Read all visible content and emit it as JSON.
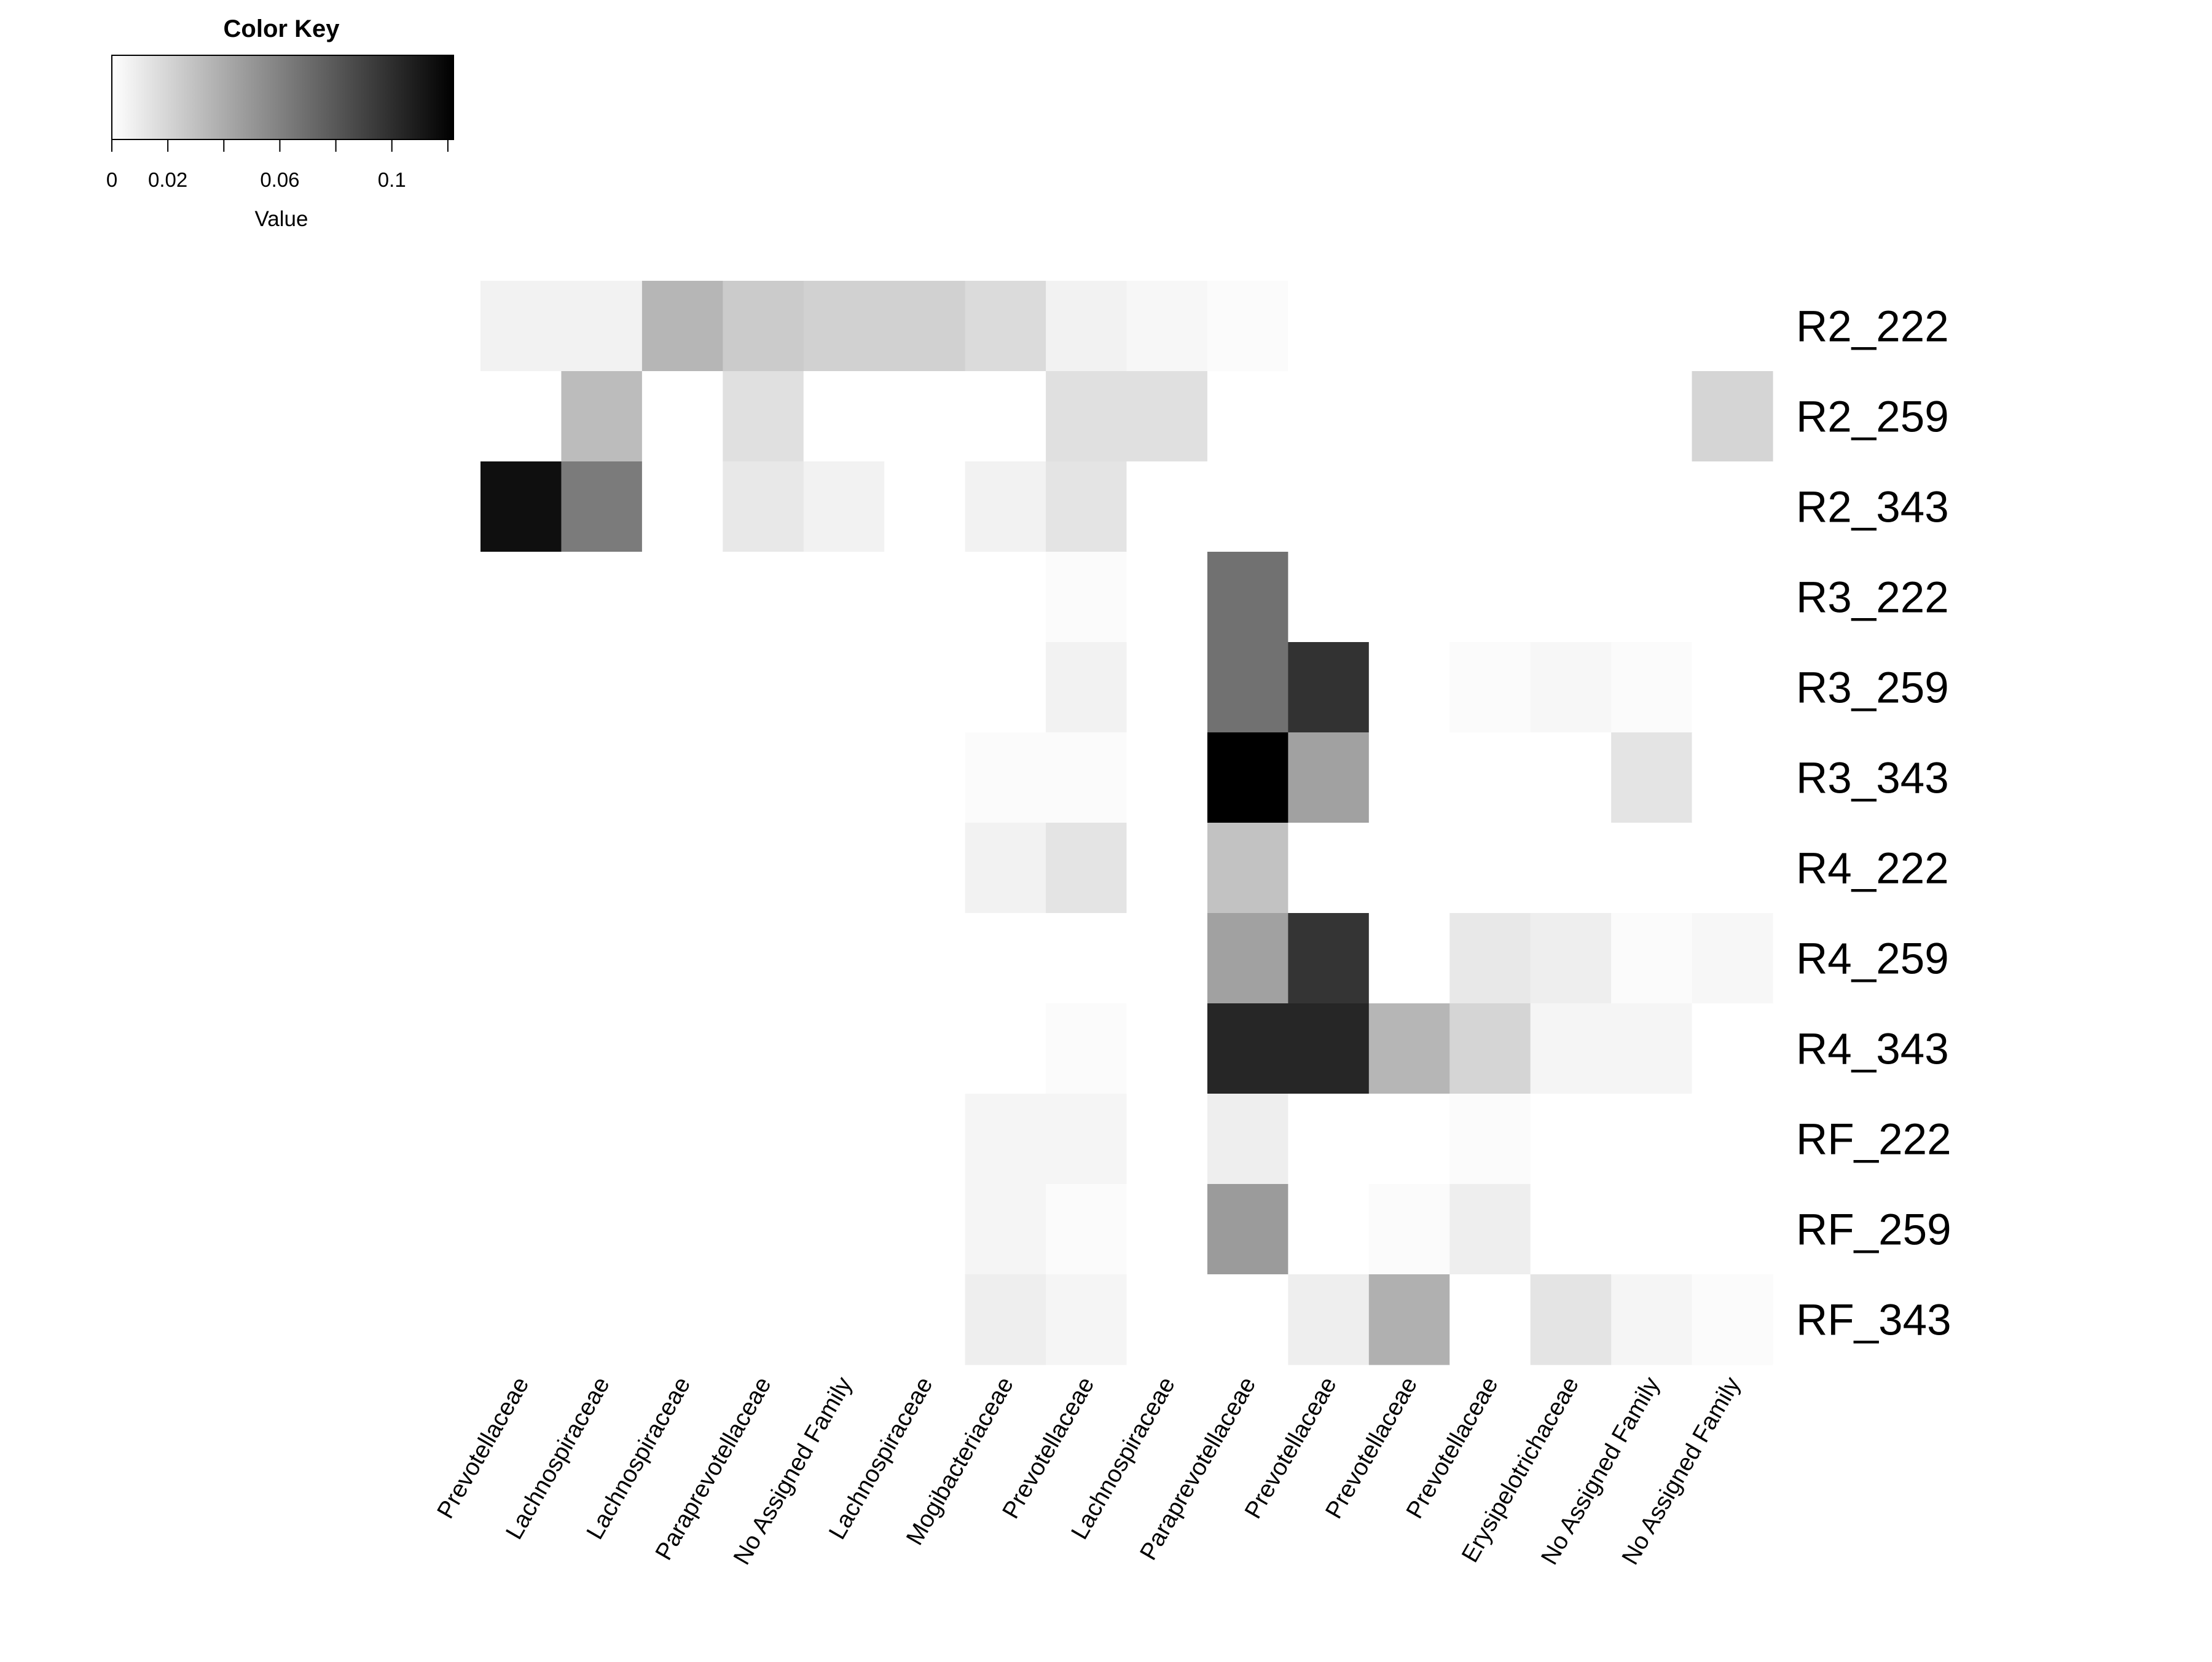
{
  "chart_data": {
    "type": "heatmap",
    "color_key": {
      "title": "Color Key",
      "xlabel": "Value",
      "tick_labels": [
        "0",
        "0.02",
        "0.06",
        "0.1"
      ],
      "tick_values": [
        0,
        0.02,
        0.06,
        0.1
      ],
      "range": [
        0,
        0.122
      ],
      "low_color": "#ffffff",
      "high_color": "#000000"
    },
    "rows": [
      "R2_222",
      "R2_259",
      "R2_343",
      "R3_222",
      "R3_259",
      "R3_343",
      "R4_222",
      "R4_259",
      "R4_343",
      "RF_222",
      "RF_259",
      "RF_343"
    ],
    "columns": [
      "Prevotellaceae",
      "Lachnospiraceae",
      "Lachnospiraceae",
      "Paraprevotellaceae",
      "No Assigned Family",
      "Lachnospiraceae",
      "Mogibacteriaceae",
      "Prevotellaceae",
      "Lachnospiraceae",
      "Paraprevotellaceae",
      "Prevotellaceae",
      "Prevotellaceae",
      "Prevotellaceae",
      "Erysipelotrichaceae",
      "No Assigned Family",
      "No Assigned Family"
    ],
    "values": [
      [
        0.006,
        0.006,
        0.035,
        0.025,
        0.022,
        0.022,
        0.017,
        0.006,
        0.004,
        0.002,
        0,
        0,
        0,
        0,
        0,
        0
      ],
      [
        0,
        0.032,
        0,
        0.015,
        0,
        0,
        0,
        0.015,
        0.015,
        0,
        0,
        0,
        0,
        0,
        0,
        0.02
      ],
      [
        0.115,
        0.063,
        0,
        0.011,
        0.006,
        0,
        0.006,
        0.013,
        0,
        0,
        0,
        0,
        0,
        0,
        0,
        0
      ],
      [
        0,
        0,
        0,
        0,
        0,
        0,
        0,
        0.002,
        0,
        0.068,
        0,
        0,
        0,
        0,
        0,
        0
      ],
      [
        0,
        0,
        0,
        0,
        0,
        0,
        0,
        0.006,
        0,
        0.068,
        0.098,
        0,
        0.002,
        0.004,
        0.002,
        0
      ],
      [
        0,
        0,
        0,
        0,
        0,
        0,
        0.002,
        0.002,
        0,
        0.122,
        0.045,
        0,
        0,
        0,
        0.013,
        0
      ],
      [
        0,
        0,
        0,
        0,
        0,
        0,
        0.006,
        0.013,
        0,
        0.029,
        0,
        0,
        0,
        0,
        0,
        0
      ],
      [
        0,
        0,
        0,
        0,
        0,
        0,
        0,
        0,
        0,
        0.045,
        0.097,
        0,
        0.011,
        0.008,
        0.002,
        0.004
      ],
      [
        0,
        0,
        0,
        0,
        0,
        0,
        0,
        0.002,
        0,
        0.104,
        0.104,
        0.035,
        0.02,
        0.005,
        0.005,
        0
      ],
      [
        0,
        0,
        0,
        0,
        0,
        0,
        0.005,
        0.005,
        0,
        0.008,
        0,
        0,
        0.002,
        0,
        0,
        0
      ],
      [
        0,
        0,
        0,
        0,
        0,
        0,
        0.005,
        0.002,
        0,
        0.048,
        0,
        0.002,
        0.008,
        0,
        0,
        0
      ],
      [
        0,
        0,
        0,
        0,
        0,
        0,
        0.008,
        0.005,
        0,
        0,
        0.008,
        0.038,
        0,
        0.013,
        0.005,
        0.002
      ]
    ]
  }
}
